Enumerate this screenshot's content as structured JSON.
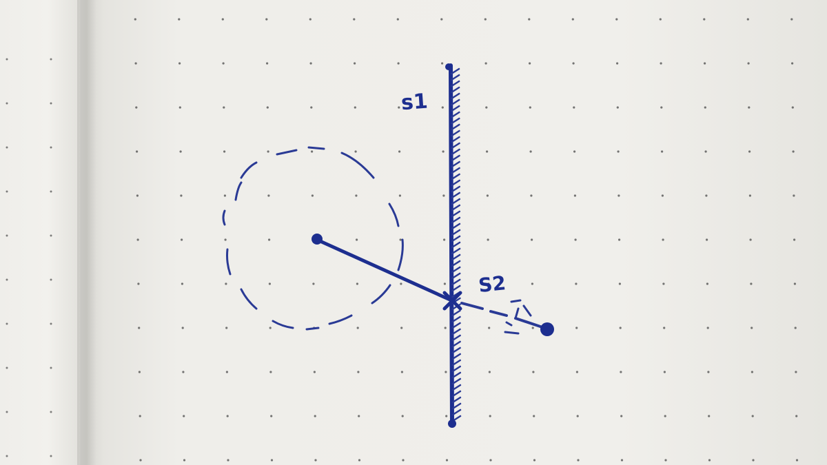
{
  "diagram": {
    "labels": {
      "s1": "s1",
      "s2": "S2"
    },
    "colors": {
      "ink": "#1d2e8f",
      "paper": "#f0efeb",
      "dot": "#4a4a4a"
    }
  }
}
